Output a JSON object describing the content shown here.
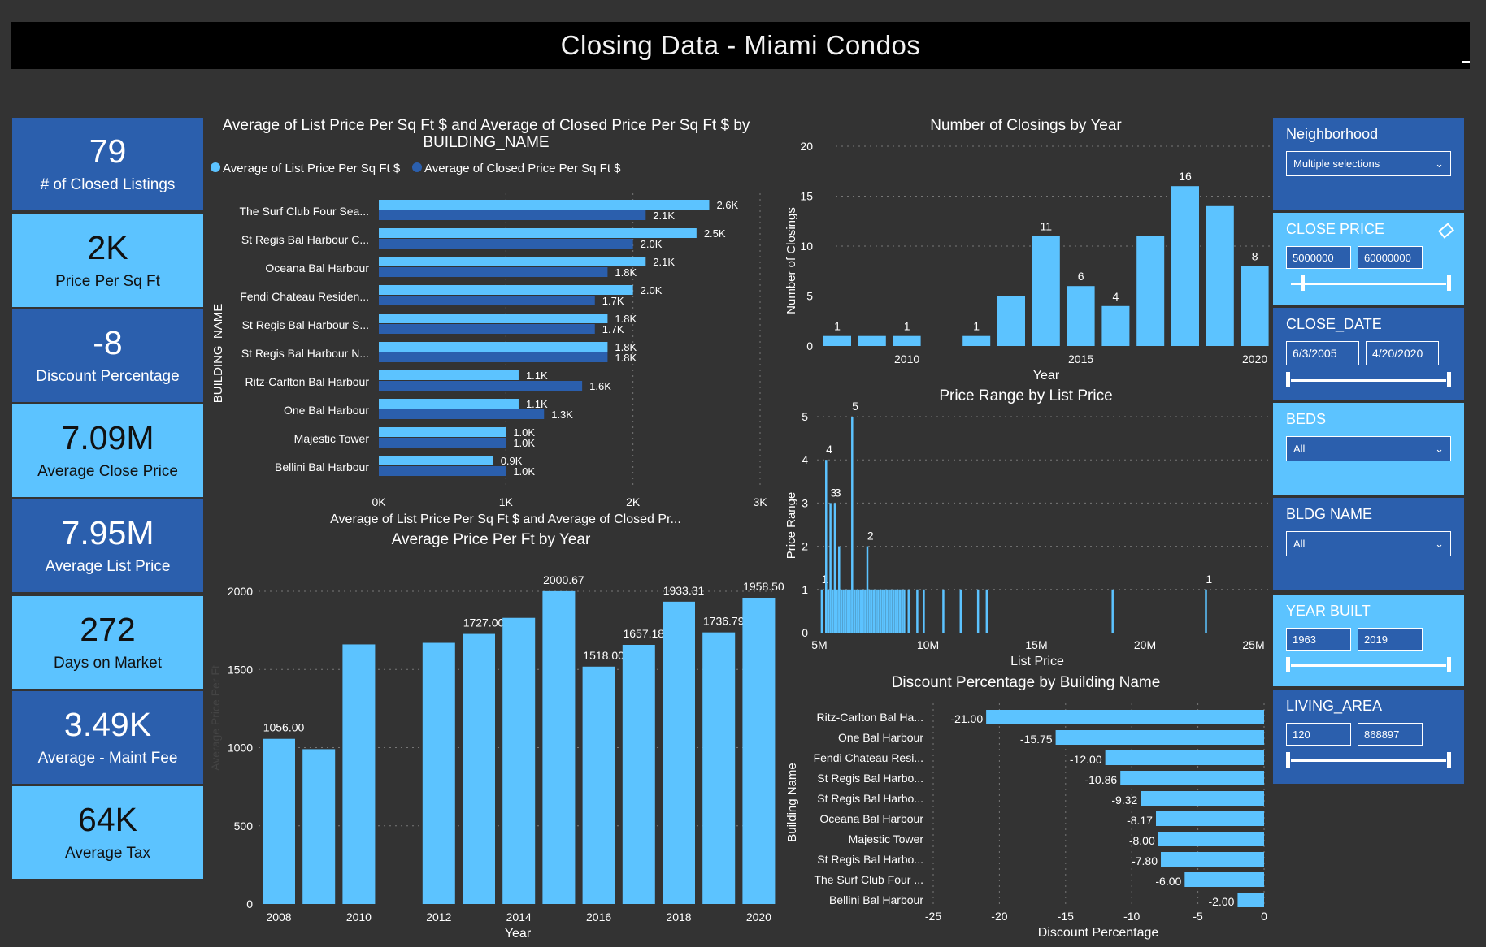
{
  "title": "Closing Data - Miami Condos",
  "kpis": [
    {
      "value": "79",
      "label": "# of Closed Listings"
    },
    {
      "value": "2K",
      "label": "Price Per Sq Ft"
    },
    {
      "value": "-8",
      "label": "Discount Percentage"
    },
    {
      "value": "7.09M",
      "label": "Average Close Price"
    },
    {
      "value": "7.95M",
      "label": "Average List Price"
    },
    {
      "value": "272",
      "label": "Days on Market"
    },
    {
      "value": "3.49K",
      "label": "Average - Maint Fee"
    },
    {
      "value": "64K",
      "label": "Average Tax"
    }
  ],
  "slicers": {
    "neighborhood": {
      "title": "Neighborhood",
      "value": "Multiple selections"
    },
    "close_price": {
      "title": "CLOSE PRICE",
      "min": "5000000",
      "max": "60000000"
    },
    "close_date": {
      "title": "CLOSE_DATE",
      "min": "6/3/2005",
      "max": "4/20/2020"
    },
    "beds": {
      "title": "BEDS",
      "value": "All"
    },
    "bldg_name": {
      "title": "BLDG NAME",
      "value": "All"
    },
    "year_built": {
      "title": "YEAR BUILT",
      "min": "1963",
      "max": "2019"
    },
    "living_area": {
      "title": "LIVING_AREA",
      "min": "120",
      "max": "868897"
    }
  },
  "colors": {
    "light": "#5cc3ff",
    "dark": "#2b5fad",
    "background": "#333333",
    "title_bar": "#000000"
  },
  "chart_data": [
    {
      "id": "building",
      "type": "bar",
      "orientation": "horizontal",
      "title": "Average of List Price Per Sq Ft $ and Average of Closed Price Per Sq Ft $ by BUILDING_NAME",
      "xlabel": "Average of List Price Per Sq Ft $ and Average of Closed Pr...",
      "ylabel": "BUILDING_NAME",
      "xlim": [
        0,
        3000
      ],
      "ticks": [
        "0K",
        "1K",
        "2K",
        "3K"
      ],
      "categories": [
        "The Surf Club Four Sea...",
        "St Regis Bal Harbour C...",
        "Oceana Bal Harbour",
        "Fendi Chateau Residen...",
        "St Regis Bal Harbour S...",
        "St Regis Bal Harbour N...",
        "Ritz-Carlton Bal Harbour",
        "One Bal Harbour",
        "Majestic Tower",
        "Bellini Bal Harbour"
      ],
      "series": [
        {
          "name": "Average of List Price Per Sq Ft $",
          "color": "#5cc3ff",
          "values": [
            2600,
            2500,
            2100,
            2000,
            1800,
            1800,
            1100,
            1100,
            1000,
            900
          ],
          "labels": [
            "2.6K",
            "2.5K",
            "2.1K",
            "2.0K",
            "1.8K",
            "1.8K",
            "1.1K",
            "1.1K",
            "1.0K",
            "0.9K"
          ]
        },
        {
          "name": "Average of Closed Price Per Sq Ft $",
          "color": "#2b5fad",
          "values": [
            2100,
            2000,
            1800,
            1700,
            1700,
            1800,
            1600,
            1300,
            1000,
            1000
          ],
          "labels": [
            "2.1K",
            "2.0K",
            "1.8K",
            "1.7K",
            "1.7K",
            "1.8K",
            "1.6K",
            "1.3K",
            "1.0K",
            "1.0K"
          ]
        }
      ]
    },
    {
      "id": "closings",
      "type": "bar",
      "title": "Number of Closings by Year",
      "xlabel": "Year",
      "ylabel": "Number of Closings",
      "ylim": [
        0,
        20
      ],
      "yticks": [
        "0",
        "5",
        "10",
        "15",
        "20"
      ],
      "xticks": [
        "2010",
        "2015",
        "2020"
      ],
      "x": [
        2008,
        2009,
        2010,
        2012,
        2013,
        2014,
        2015,
        2016,
        2017,
        2018,
        2019,
        2020
      ],
      "values": [
        1,
        1,
        1,
        1,
        5,
        11,
        6,
        4,
        11,
        16,
        14,
        8
      ],
      "labels": [
        "1",
        "",
        "1",
        "1",
        "",
        "11",
        "6",
        "4",
        "",
        "16",
        "",
        "8"
      ]
    },
    {
      "id": "price_range",
      "type": "bar",
      "title": "Price Range by List Price",
      "xlabel": "List Price",
      "ylabel": "Price Range",
      "ylim": [
        0,
        5
      ],
      "yticks": [
        "0",
        "1",
        "2",
        "3",
        "4",
        "5"
      ],
      "xticks": [
        "5M",
        "10M",
        "15M",
        "20M",
        "25M"
      ],
      "x": [
        5.1,
        5.3,
        5.4,
        5.5,
        5.6,
        5.7,
        5.8,
        5.9,
        6.0,
        6.1,
        6.2,
        6.3,
        6.4,
        6.5,
        6.6,
        6.7,
        6.8,
        6.9,
        7.0,
        7.1,
        7.2,
        7.3,
        7.4,
        7.5,
        7.6,
        7.7,
        7.8,
        7.9,
        8.0,
        8.1,
        8.2,
        8.3,
        8.4,
        8.5,
        8.6,
        8.7,
        8.8,
        8.9,
        9.1,
        9.5,
        9.8,
        10.7,
        11.5,
        12.3,
        12.7,
        18.5,
        22.8
      ],
      "values": [
        1,
        4,
        1,
        3,
        1,
        3,
        1,
        2,
        1,
        1,
        1,
        1,
        1,
        5,
        1,
        1,
        1,
        1,
        1,
        1,
        2,
        1,
        1,
        1,
        1,
        1,
        1,
        1,
        1,
        1,
        1,
        1,
        1,
        1,
        1,
        1,
        1,
        1,
        1,
        1,
        1,
        1,
        1,
        1,
        1,
        1,
        1
      ],
      "labels": [
        "1",
        "4",
        "",
        "3",
        "",
        "3",
        "",
        "",
        "",
        "",
        "",
        "",
        "",
        "5",
        "",
        "",
        "",
        "",
        "",
        "",
        "2",
        "",
        "",
        "",
        "",
        "",
        "",
        "",
        "",
        "",
        "",
        "",
        "",
        "",
        "",
        "",
        "",
        "",
        "",
        "",
        "",
        "",
        "",
        "",
        "",
        "",
        "1"
      ]
    },
    {
      "id": "avg_price_year",
      "type": "bar",
      "title": "Average Price Per Ft by Year",
      "xlabel": "Year",
      "ylabel": "Average Price Per Ft",
      "ylim": [
        0,
        2000
      ],
      "yticks": [
        "0",
        "500",
        "1000",
        "1500",
        "2000"
      ],
      "xticks": [
        "2008",
        "2010",
        "2012",
        "2014",
        "2016",
        "2018",
        "2020"
      ],
      "x": [
        2008,
        2009,
        2010,
        2012,
        2013,
        2014,
        2015,
        2016,
        2017,
        2018,
        2019,
        2020
      ],
      "values": [
        1056,
        990,
        1660,
        1670,
        1727,
        1830,
        2000.67,
        1518,
        1657.18,
        1933.31,
        1736.79,
        1958.5
      ],
      "labels": [
        "1056.00",
        "",
        "",
        "",
        "1727.00",
        "",
        "2000.67",
        "1518.00",
        "1657.18",
        "1933.31",
        "1736.79",
        "1958.50"
      ]
    },
    {
      "id": "discount",
      "type": "bar",
      "orientation": "horizontal",
      "title": "Discount Percentage by Building Name",
      "xlabel": "Discount Percentage",
      "ylabel": "Building Name",
      "xlim": [
        -25,
        0
      ],
      "xticks": [
        "-25",
        "-20",
        "-15",
        "-10",
        "-5",
        "0"
      ],
      "categories": [
        "Ritz-Carlton Bal Ha...",
        "One Bal Harbour",
        "Fendi Chateau Resi...",
        "St Regis Bal Harbo...",
        "St Regis Bal Harbo...",
        "Oceana Bal Harbour",
        "Majestic Tower",
        "St Regis Bal Harbo...",
        "The Surf Club Four ...",
        "Bellini Bal Harbour"
      ],
      "values": [
        -21.0,
        -15.75,
        -12.0,
        -10.86,
        -9.32,
        -8.17,
        -8.0,
        -7.8,
        -6.0,
        -2.0
      ],
      "labels": [
        "-21.00",
        "-15.75",
        "-12.00",
        "-10.86",
        "-9.32",
        "-8.17",
        "-8.00",
        "-7.80",
        "-6.00",
        "-2.00"
      ]
    }
  ]
}
